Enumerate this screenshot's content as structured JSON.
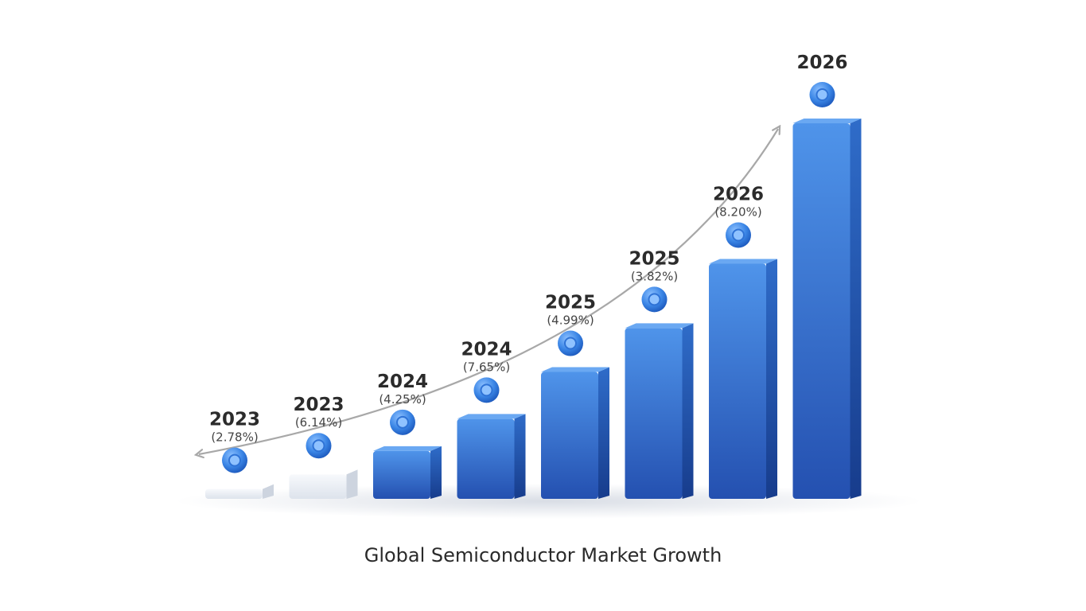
{
  "chart_data": {
    "type": "bar",
    "title": "Global Semiconductor Market Growth",
    "bars": [
      {
        "year": "2023",
        "growth": "(2.78%)",
        "value": 0.5
      },
      {
        "year": "2023",
        "growth": "(6.14%)",
        "value": 1.0
      },
      {
        "year": "2024",
        "growth": "(4.25%)",
        "value": 1.8
      },
      {
        "year": "2024",
        "growth": "(7.65%)",
        "value": 2.9
      },
      {
        "year": "2025",
        "growth": "(4.99%)",
        "value": 4.5
      },
      {
        "year": "2025",
        "growth": "(3.82%)",
        "value": 6.0
      },
      {
        "year": "2026",
        "growth": "(8.20%)",
        "value": 8.2
      },
      {
        "year": "2026",
        "growth": "",
        "value": 13.0
      }
    ],
    "ylim": [
      0,
      13
    ],
    "grid": false,
    "legend": "none",
    "colors": {
      "bar_blue": "#3d7fdf",
      "bar_blue_dark": "#1f4ba6",
      "bar_white": "#eef1f6",
      "marker": "#3b86e6",
      "trend_arrow": "#a8a8a8"
    }
  }
}
